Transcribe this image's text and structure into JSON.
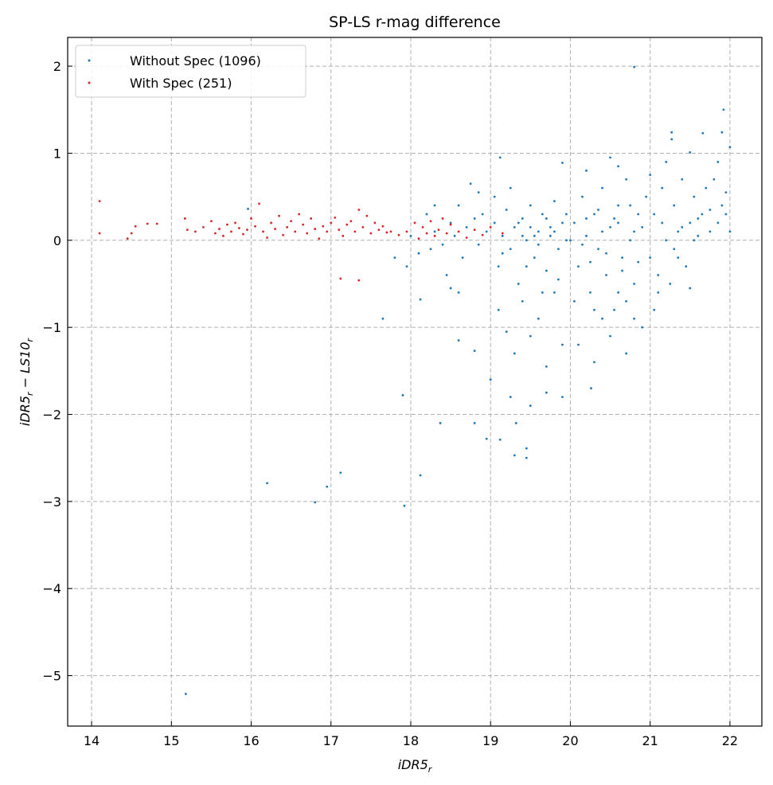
{
  "chart_data": {
    "type": "scatter",
    "title": "SP-LS r-mag difference",
    "xlabel": "iDR5_r",
    "ylabel": "iDR5_r − LS10_r",
    "xlim": [
      13.7,
      22.4
    ],
    "ylim": [
      -5.58,
      2.33
    ],
    "xticks": [
      "14",
      "15",
      "16",
      "17",
      "18",
      "19",
      "20",
      "21",
      "22"
    ],
    "yticks": [
      "2",
      "1",
      "0",
      "−1",
      "−2",
      "−3",
      "−4",
      "−5"
    ],
    "xtick_values": [
      14,
      15,
      16,
      17,
      18,
      19,
      20,
      21,
      22
    ],
    "ytick_values": [
      2,
      1,
      0,
      -1,
      -2,
      -3,
      -4,
      -5
    ],
    "grid": true,
    "legend_placement": "top-left",
    "series": [
      {
        "name": "Without Spec (1096)",
        "color": "#1f77b4",
        "points": [
          [
            20.8,
            1.99
          ],
          [
            15.18,
            -5.21
          ],
          [
            16.2,
            -2.79
          ],
          [
            16.8,
            -3.01
          ],
          [
            16.95,
            -2.83
          ],
          [
            17.12,
            -2.67
          ],
          [
            17.92,
            -3.05
          ],
          [
            18.12,
            -2.7
          ],
          [
            17.9,
            -1.78
          ],
          [
            18.37,
            -2.1
          ],
          [
            18.95,
            -2.28
          ],
          [
            18.8,
            -2.1
          ],
          [
            19.12,
            -2.29
          ],
          [
            19.3,
            -2.47
          ],
          [
            19.45,
            -2.39
          ],
          [
            19.32,
            -2.1
          ],
          [
            19.45,
            -2.5
          ],
          [
            17.65,
            -0.9
          ],
          [
            18.12,
            -0.68
          ],
          [
            21.92,
            1.5
          ],
          [
            21.27,
            1.24
          ],
          [
            21.27,
            1.16
          ],
          [
            21.66,
            1.23
          ],
          [
            21.9,
            1.24
          ],
          [
            21.5,
            1.01
          ],
          [
            22.0,
            1.07
          ],
          [
            19.12,
            0.95
          ],
          [
            19.9,
            0.89
          ],
          [
            20.26,
            -1.7
          ],
          [
            18.6,
            -1.15
          ],
          [
            18.8,
            -1.27
          ],
          [
            19.5,
            -1.9
          ],
          [
            19.7,
            -1.75
          ],
          [
            19.9,
            -1.8
          ],
          [
            15.96,
            0.36
          ],
          [
            18.2,
            0.3
          ],
          [
            18.3,
            0.1
          ],
          [
            18.4,
            -0.05
          ],
          [
            18.5,
            0.2
          ],
          [
            18.45,
            -0.4
          ],
          [
            18.55,
            0.05
          ],
          [
            18.6,
            0.4
          ],
          [
            18.65,
            -0.2
          ],
          [
            18.7,
            0.15
          ],
          [
            18.75,
            0.65
          ],
          [
            18.8,
            0.25
          ],
          [
            18.85,
            -0.05
          ],
          [
            18.9,
            0.3
          ],
          [
            18.95,
            0.1
          ],
          [
            18.6,
            -0.6
          ],
          [
            18.85,
            0.55
          ],
          [
            18.5,
            -0.55
          ],
          [
            18.3,
            0.4
          ],
          [
            18.1,
            -0.15
          ],
          [
            17.95,
            -0.3
          ],
          [
            17.8,
            -0.2
          ],
          [
            18.0,
            0.05
          ],
          [
            18.25,
            -0.1
          ],
          [
            19.05,
            0.2
          ],
          [
            19.1,
            -0.3
          ],
          [
            19.15,
            0.05
          ],
          [
            19.2,
            0.35
          ],
          [
            19.25,
            -0.1
          ],
          [
            19.3,
            0.15
          ],
          [
            19.35,
            -0.5
          ],
          [
            19.4,
            0.25
          ],
          [
            19.45,
            0.0
          ],
          [
            19.5,
            0.4
          ],
          [
            19.55,
            -0.2
          ],
          [
            19.6,
            0.1
          ],
          [
            19.65,
            0.3
          ],
          [
            19.7,
            -0.35
          ],
          [
            19.75,
            0.05
          ],
          [
            19.8,
            0.45
          ],
          [
            19.85,
            -0.1
          ],
          [
            19.9,
            0.2
          ],
          [
            19.95,
            0.0
          ],
          [
            19.1,
            -0.8
          ],
          [
            19.2,
            -1.05
          ],
          [
            19.3,
            -1.3
          ],
          [
            19.4,
            -0.7
          ],
          [
            19.5,
            -1.1
          ],
          [
            19.6,
            -0.9
          ],
          [
            19.7,
            -1.45
          ],
          [
            19.8,
            -0.6
          ],
          [
            19.9,
            -1.2
          ],
          [
            19.05,
            0.5
          ],
          [
            19.25,
            0.6
          ],
          [
            19.4,
            0.05
          ],
          [
            19.5,
            0.15
          ],
          [
            19.6,
            -0.05
          ],
          [
            19.7,
            0.25
          ],
          [
            19.8,
            0.1
          ],
          [
            19.35,
            0.2
          ],
          [
            19.55,
            0.05
          ],
          [
            19.75,
            0.15
          ],
          [
            19.95,
            0.3
          ],
          [
            19.15,
            -0.15
          ],
          [
            19.45,
            -0.3
          ],
          [
            19.65,
            -0.6
          ],
          [
            19.85,
            -0.45
          ],
          [
            19.0,
            -1.6
          ],
          [
            19.25,
            -1.8
          ],
          [
            20.05,
            0.2
          ],
          [
            20.1,
            -0.3
          ],
          [
            20.15,
            0.5
          ],
          [
            20.2,
            0.05
          ],
          [
            20.25,
            -0.6
          ],
          [
            20.3,
            0.3
          ],
          [
            20.35,
            -0.1
          ],
          [
            20.4,
            0.6
          ],
          [
            20.45,
            -0.4
          ],
          [
            20.5,
            0.15
          ],
          [
            20.55,
            -0.8
          ],
          [
            20.6,
            0.4
          ],
          [
            20.65,
            -0.2
          ],
          [
            20.7,
            0.7
          ],
          [
            20.75,
            0.0
          ],
          [
            20.8,
            -0.5
          ],
          [
            20.85,
            0.3
          ],
          [
            20.9,
            -1.0
          ],
          [
            20.95,
            0.5
          ],
          [
            20.1,
            -1.2
          ],
          [
            20.3,
            -1.4
          ],
          [
            20.5,
            -1.1
          ],
          [
            20.7,
            -1.3
          ],
          [
            20.2,
            0.8
          ],
          [
            20.5,
            0.95
          ],
          [
            20.6,
            0.85
          ],
          [
            20.8,
            -0.9
          ],
          [
            20.4,
            -0.9
          ],
          [
            20.6,
            -0.6
          ],
          [
            20.0,
            0.0
          ],
          [
            20.2,
            0.25
          ],
          [
            20.4,
            0.1
          ],
          [
            20.6,
            0.2
          ],
          [
            20.8,
            0.1
          ],
          [
            20.15,
            -0.05
          ],
          [
            20.35,
            0.35
          ],
          [
            20.55,
            0.25
          ],
          [
            20.75,
            0.4
          ],
          [
            20.9,
            0.15
          ],
          [
            20.05,
            -0.7
          ],
          [
            20.25,
            -0.25
          ],
          [
            20.45,
            -0.15
          ],
          [
            20.65,
            -0.35
          ],
          [
            20.85,
            -0.25
          ],
          [
            20.3,
            -0.8
          ],
          [
            20.7,
            -0.7
          ],
          [
            21.05,
            0.3
          ],
          [
            21.1,
            -0.4
          ],
          [
            21.15,
            0.6
          ],
          [
            21.2,
            0.0
          ],
          [
            21.25,
            -0.5
          ],
          [
            21.3,
            0.4
          ],
          [
            21.35,
            -0.2
          ],
          [
            21.4,
            0.7
          ],
          [
            21.45,
            -0.3
          ],
          [
            21.5,
            0.2
          ],
          [
            21.55,
            0.5
          ],
          [
            21.6,
            0.05
          ],
          [
            21.65,
            0.3
          ],
          [
            21.7,
            0.6
          ],
          [
            21.75,
            0.35
          ],
          [
            21.8,
            0.7
          ],
          [
            21.85,
            0.2
          ],
          [
            21.9,
            0.4
          ],
          [
            21.95,
            0.3
          ],
          [
            22.0,
            0.1
          ],
          [
            21.0,
            0.75
          ],
          [
            21.05,
            -0.8
          ],
          [
            21.1,
            -0.6
          ],
          [
            21.2,
            0.9
          ],
          [
            21.3,
            -0.1
          ],
          [
            21.4,
            0.15
          ],
          [
            21.5,
            -0.55
          ],
          [
            21.6,
            0.25
          ],
          [
            21.75,
            0.1
          ],
          [
            21.85,
            0.9
          ],
          [
            21.95,
            0.55
          ],
          [
            21.0,
            -0.2
          ],
          [
            21.15,
            0.2
          ],
          [
            21.35,
            0.1
          ],
          [
            21.55,
            0.0
          ]
        ]
      },
      {
        "name": "With Spec (251)",
        "color": "#d62728",
        "points": [
          [
            14.1,
            0.45
          ],
          [
            14.1,
            0.08
          ],
          [
            14.45,
            0.02
          ],
          [
            14.5,
            0.08
          ],
          [
            14.55,
            0.16
          ],
          [
            14.7,
            0.19
          ],
          [
            14.82,
            0.19
          ],
          [
            15.17,
            0.25
          ],
          [
            15.2,
            0.12
          ],
          [
            17.12,
            -0.44
          ],
          [
            17.35,
            -0.46
          ],
          [
            15.3,
            0.1
          ],
          [
            15.4,
            0.15
          ],
          [
            15.5,
            0.22
          ],
          [
            15.55,
            0.08
          ],
          [
            15.6,
            0.13
          ],
          [
            15.65,
            0.05
          ],
          [
            15.7,
            0.18
          ],
          [
            15.75,
            0.1
          ],
          [
            15.8,
            0.2
          ],
          [
            15.85,
            0.14
          ],
          [
            15.9,
            0.07
          ],
          [
            15.95,
            0.12
          ],
          [
            16.0,
            0.25
          ],
          [
            16.05,
            0.16
          ],
          [
            16.1,
            0.42
          ],
          [
            16.15,
            0.1
          ],
          [
            16.2,
            0.03
          ],
          [
            16.25,
            0.2
          ],
          [
            16.3,
            0.13
          ],
          [
            16.35,
            0.28
          ],
          [
            16.4,
            0.06
          ],
          [
            16.45,
            0.15
          ],
          [
            16.5,
            0.22
          ],
          [
            16.55,
            0.1
          ],
          [
            16.6,
            0.3
          ],
          [
            16.65,
            0.18
          ],
          [
            16.7,
            0.08
          ],
          [
            16.75,
            0.25
          ],
          [
            16.8,
            0.13
          ],
          [
            16.85,
            0.02
          ],
          [
            16.9,
            0.16
          ],
          [
            16.95,
            0.1
          ],
          [
            17.0,
            0.2
          ],
          [
            17.05,
            0.26
          ],
          [
            17.1,
            0.12
          ],
          [
            17.15,
            0.05
          ],
          [
            17.2,
            0.18
          ],
          [
            17.25,
            0.22
          ],
          [
            17.3,
            0.1
          ],
          [
            17.35,
            0.35
          ],
          [
            17.4,
            0.15
          ],
          [
            17.45,
            0.28
          ],
          [
            17.5,
            0.08
          ],
          [
            17.55,
            0.2
          ],
          [
            17.6,
            0.12
          ],
          [
            17.65,
            0.16
          ],
          [
            17.7,
            0.09
          ],
          [
            17.75,
            0.1
          ],
          [
            17.85,
            0.06
          ],
          [
            17.95,
            0.1
          ],
          [
            18.05,
            0.2
          ],
          [
            18.1,
            0.02
          ],
          [
            18.15,
            0.15
          ],
          [
            18.2,
            0.08
          ],
          [
            18.25,
            0.22
          ],
          [
            18.3,
            0.05
          ],
          [
            18.35,
            0.12
          ],
          [
            18.4,
            0.25
          ],
          [
            18.45,
            0.08
          ],
          [
            18.5,
            0.18
          ],
          [
            18.6,
            0.1
          ],
          [
            18.7,
            0.03
          ],
          [
            18.8,
            0.12
          ],
          [
            18.9,
            0.06
          ],
          [
            19.0,
            0.15
          ],
          [
            19.15,
            0.08
          ]
        ]
      }
    ]
  }
}
